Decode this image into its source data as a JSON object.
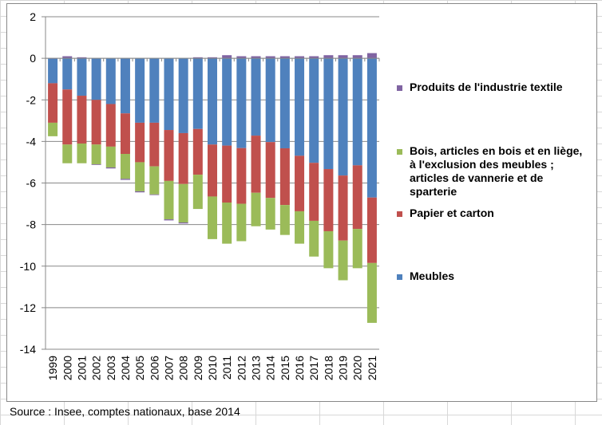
{
  "chart_data": {
    "type": "bar",
    "stacked": true,
    "categories": [
      "1999",
      "2000",
      "2001",
      "2002",
      "2003",
      "2004",
      "2005",
      "2006",
      "2007",
      "2008",
      "2009",
      "2010",
      "2011",
      "2012",
      "2013",
      "2014",
      "2015",
      "2016",
      "2017",
      "2018",
      "2019",
      "2020",
      "2021"
    ],
    "series": [
      {
        "name": "Meubles",
        "color": "#4F81BD",
        "values": [
          -1.2,
          -1.5,
          -1.8,
          -2.0,
          -2.2,
          -2.65,
          -3.1,
          -3.1,
          -3.45,
          -3.6,
          -3.4,
          -4.15,
          -4.2,
          -4.32,
          -3.72,
          -4.03,
          -4.33,
          -4.69,
          -5.03,
          -5.33,
          -5.64,
          -5.15,
          -6.7
        ]
      },
      {
        "name": "Papier et carton",
        "color": "#C0504D",
        "values": [
          -1.9,
          -2.65,
          -2.3,
          -2.15,
          -2.05,
          -1.95,
          -1.9,
          -2.1,
          -2.45,
          -2.45,
          -2.2,
          -2.5,
          -2.74,
          -2.68,
          -2.75,
          -2.69,
          -2.73,
          -2.67,
          -2.79,
          -2.99,
          -3.13,
          -3.06,
          -3.15
        ]
      },
      {
        "name": "Bois, articles en bois et en liège, à l'exclusion des meubles ; articles de vannerie et de sparterie",
        "color": "#9BBB59",
        "values": [
          -0.65,
          -0.9,
          -0.95,
          -0.95,
          -1.0,
          -1.2,
          -1.4,
          -1.35,
          -1.85,
          -1.85,
          -1.65,
          -2.05,
          -1.98,
          -1.8,
          -1.61,
          -1.52,
          -1.44,
          -1.56,
          -1.72,
          -1.78,
          -1.91,
          -1.89,
          -2.88
        ]
      },
      {
        "name": "Produits de l'industrie textile",
        "color": "#8064A2",
        "values": [
          0,
          0.1,
          0.05,
          -0.03,
          -0.05,
          -0.05,
          -0.05,
          -0.03,
          -0.05,
          -0.05,
          0.05,
          0.05,
          0.15,
          0.1,
          0.1,
          0.1,
          0.1,
          0.1,
          0.1,
          0.15,
          0.15,
          0.15,
          0.25
        ]
      }
    ],
    "ylim": [
      -14,
      2
    ],
    "yticks": [
      2,
      0,
      -2,
      -4,
      -6,
      -8,
      -10,
      -12,
      -14
    ],
    "ytick_labels": [
      "2",
      "0",
      "-2",
      "-4",
      "-6",
      "-8",
      "-10",
      "-12",
      "-14"
    ],
    "grid": true,
    "legend": [
      "Produits de l'industrie textile",
      "Bois, articles en bois et en liège, à l'exclusion des meubles ; articles de vannerie et de sparterie",
      "Papier et carton",
      "Meubles"
    ],
    "legend_position": "right"
  },
  "source": "Source : Insee, comptes nationaux, base 2014"
}
